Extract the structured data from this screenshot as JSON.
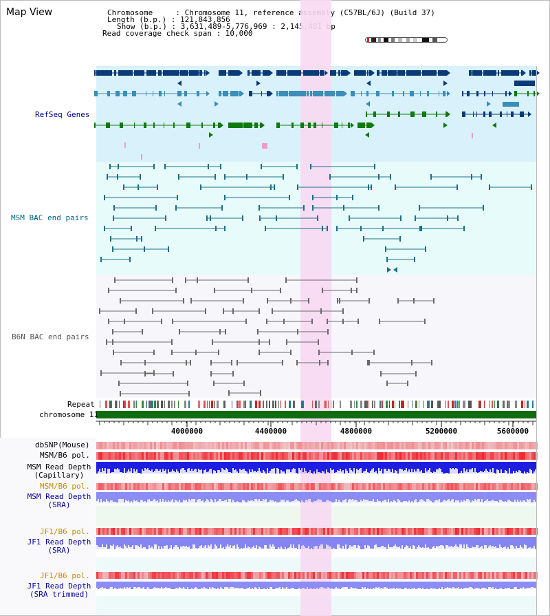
{
  "app": {
    "title": "Map View"
  },
  "info": {
    "rows": [
      "Chromosome     : Chromosome 11, reference assembly (C57BL/6J) (Build 37)",
      "Length (b.p.) : 121,843,856",
      "Show (b.p.) : 3,631,489-5,776,969 : 2,145,481 bp",
      "Read coverage check span : 10,000"
    ]
  },
  "tracks": {
    "refseq": {
      "label": "RefSeq Genes",
      "color": "#000099"
    },
    "msm_bac": {
      "label": "MSM BAC end pairs",
      "color": "#006688"
    },
    "b6n_bac": {
      "label": "B6N BAC end pairs",
      "color": "#555555"
    },
    "repeat": {
      "label": "Repeat"
    },
    "chromosome": {
      "label": "chromosome 11"
    },
    "dbsnp": {
      "label": "dbSNP(Mouse)"
    },
    "msm_b6_pol_1": {
      "label": "MSM/B6 pol."
    },
    "msm_read_depth_cap": {
      "label_1": "MSM Read Depth",
      "label_2": "(Capillary)"
    },
    "msm_b6_pol_2": {
      "label": "MSM/B6 pol.",
      "color": "#cc8800"
    },
    "msm_read_depth_sra": {
      "label_1": "MSM Read Depth",
      "label_2": "(SRA)",
      "color": "#000099"
    },
    "jf1_b6_pol_1": {
      "label": "JF1/B6 pol.",
      "color": "#cc8800"
    },
    "jf1_read_depth_sra": {
      "label_1": "JF1 Read Depth",
      "label_2": "(SRA)",
      "color": "#000099"
    },
    "jf1_b6_pol_2": {
      "label": "JF1/B6 pol.",
      "color": "#cc8800"
    },
    "jf1_read_depth_trim": {
      "label_1": "JF1 Read Depth",
      "label_2": "(SRA trimmed)",
      "color": "#000099"
    }
  },
  "axis": {
    "ticks": [
      "4000000",
      "4400000",
      "4800000",
      "5200000",
      "5600000"
    ]
  },
  "colors": {
    "refseq_bg": "#d9f1fa",
    "msm_bg": "#e8fbfb",
    "b6n_bg": "#f6f6fb",
    "highlight": "#f7d9f2",
    "gene_dark": "#0a3a78",
    "gene_mid": "#3a8eb8",
    "gene_green": "#0c7a0c",
    "chrom_green": "#0f6d0f"
  }
}
